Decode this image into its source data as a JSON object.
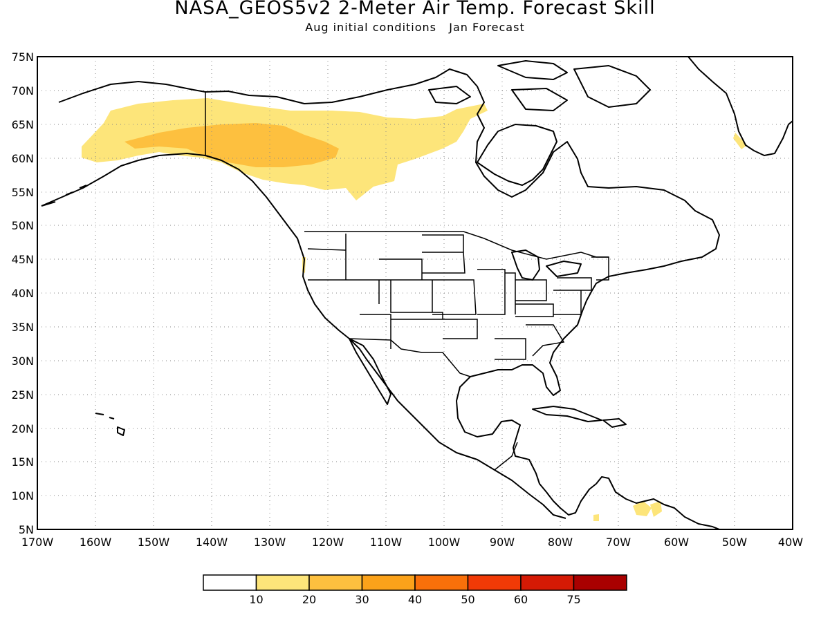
{
  "title": "NASA_GEOS5v2 2-Meter Air Temp. Forecast Skill",
  "subtitle": "Aug initial conditions   Jan Forecast",
  "map": {
    "lon_range": [
      -170,
      -40
    ],
    "lat_range": [
      5,
      75
    ],
    "lat_labels": [
      "75N",
      "70N",
      "65N",
      "60N",
      "55N",
      "50N",
      "45N",
      "40N",
      "35N",
      "30N",
      "25N",
      "20N",
      "15N",
      "10N",
      "5N"
    ],
    "lon_labels": [
      "170W",
      "160W",
      "150W",
      "140W",
      "130W",
      "120W",
      "110W",
      "100W",
      "90W",
      "80W",
      "70W",
      "60W",
      "50W",
      "40W"
    ],
    "gridlines": "dotted"
  },
  "colorbar": {
    "colors": [
      "#ffffff",
      "#fde57a",
      "#fdc03f",
      "#fba21a",
      "#f9700a",
      "#f13a06",
      "#d51a05",
      "#a90000"
    ],
    "labels": [
      "10",
      "20",
      "30",
      "40",
      "50",
      "60",
      "75"
    ]
  },
  "skill_regions": [
    {
      "level": "10-20",
      "color": "#fde57a",
      "area": "Alaska to northwestern Canada"
    },
    {
      "level": "20-30",
      "color": "#fdc03f",
      "area": "Yukon and western Canada interior"
    }
  ]
}
